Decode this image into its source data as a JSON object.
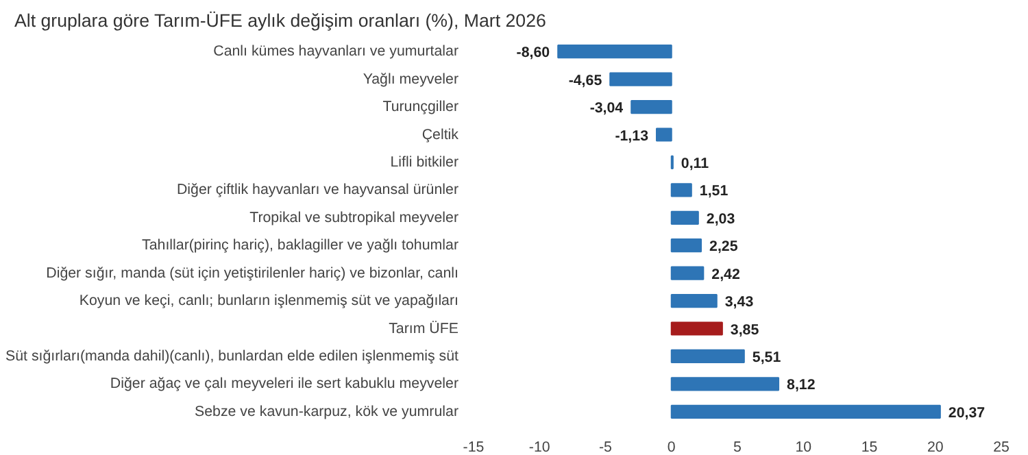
{
  "chart_data": {
    "type": "bar",
    "orientation": "horizontal",
    "title": "Alt gruplara göre Tarım-ÜFE aylık değişim oranları (%), Mart 2026",
    "categories": [
      "Canlı kümes hayvanları ve yumurtalar",
      "Yağlı meyveler",
      "Turunçgiller",
      "Çeltik",
      "Lifli bitkiler",
      "Diğer çiftlik hayvanları ve hayvansal ürünler",
      "Tropikal ve subtropikal meyveler",
      "Tahıllar(pirinç hariç), baklagiller ve yağlı tohumlar",
      "Diğer sığır, manda (süt için yetiştirilenler hariç) ve bizonlar, canlı",
      "Koyun ve keçi, canlı; bunların işlenmemiş süt ve yapağıları",
      "Tarım ÜFE",
      "Süt sığırları(manda dahil)(canlı), bunlardan elde edilen işlenmemiş süt",
      "Diğer ağaç ve çalı meyveleri ile sert kabuklu meyveler",
      "Sebze ve kavun-karpuz, kök ve yumrular"
    ],
    "values": [
      -8.6,
      -4.65,
      -3.04,
      -1.13,
      0.11,
      1.51,
      2.03,
      2.25,
      2.42,
      3.43,
      3.85,
      5.51,
      8.12,
      20.37
    ],
    "value_labels": [
      "-8,60",
      "-4,65",
      "-3,04",
      "-1,13",
      "0,11",
      "1,51",
      "2,03",
      "2,25",
      "2,42",
      "3,43",
      "3,85",
      "5,51",
      "8,12",
      "20,37"
    ],
    "colors": [
      "#2e75b6",
      "#2e75b6",
      "#2e75b6",
      "#2e75b6",
      "#2e75b6",
      "#2e75b6",
      "#2e75b6",
      "#2e75b6",
      "#2e75b6",
      "#2e75b6",
      "#a61c1c",
      "#2e75b6",
      "#2e75b6",
      "#2e75b6"
    ],
    "xlim": [
      -15,
      25
    ],
    "xticks": [
      -15,
      -10,
      -5,
      0,
      5,
      10,
      15,
      20,
      25
    ],
    "grid": false
  }
}
